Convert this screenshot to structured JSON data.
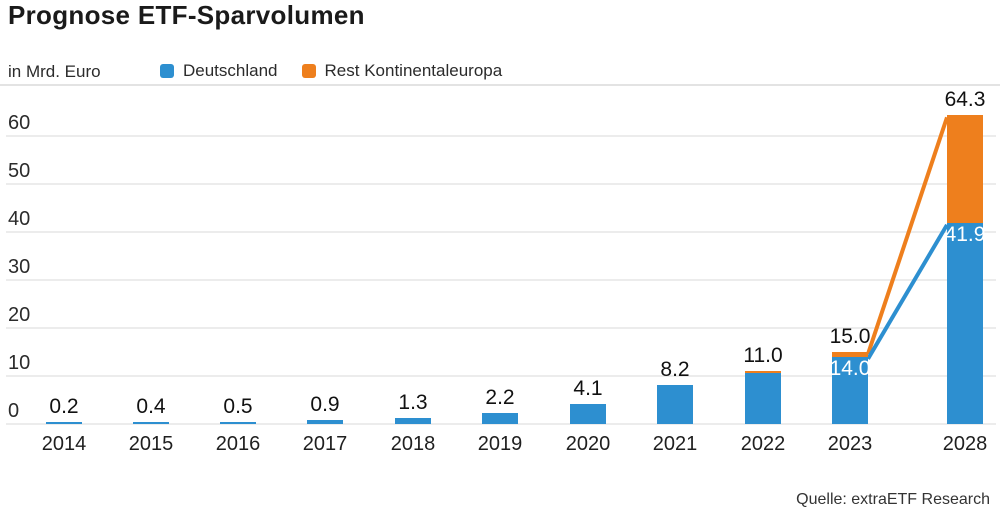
{
  "title": "Prognose ETF-Sparvolumen",
  "unit_label": "in Mrd. Euro",
  "legend": {
    "items": [
      {
        "label": "Deutschland",
        "color": "#2d8fd0"
      },
      {
        "label": "Rest Kontinentaleuropa",
        "color": "#ee7f1d"
      }
    ]
  },
  "source": "Quelle: extraETF Research",
  "chart_data": {
    "type": "bar",
    "stacked": true,
    "unit": "Mrd. Euro",
    "title": "Prognose ETF-Sparvolumen",
    "categories": [
      "2014",
      "2015",
      "2016",
      "2017",
      "2018",
      "2019",
      "2020",
      "2021",
      "2022",
      "2023",
      "2028"
    ],
    "series": [
      {
        "name": "Deutschland",
        "color": "#2d8fd0",
        "values": [
          0.2,
          0.4,
          0.5,
          0.9,
          1.3,
          2.2,
          4.1,
          8.2,
          10.6,
          14.0,
          41.9
        ]
      },
      {
        "name": "Rest Kontinentaleuropa",
        "color": "#ee7f1d",
        "values": [
          0,
          0,
          0,
          0,
          0,
          0,
          0,
          0,
          0.4,
          1.0,
          22.4
        ]
      }
    ],
    "totals": [
      0.2,
      0.4,
      0.5,
      0.9,
      1.3,
      2.2,
      4.1,
      8.2,
      11.0,
      15.0,
      64.3
    ],
    "total_labels": [
      "0.2",
      "0.4",
      "0.5",
      "0.9",
      "1.3",
      "2.2",
      "4.1",
      "8.2",
      "11.0",
      "15.0",
      "64.3"
    ],
    "inside_labels": [
      null,
      null,
      null,
      null,
      null,
      null,
      null,
      null,
      null,
      "14.0",
      "41.9"
    ],
    "y_ticks": [
      0,
      10,
      20,
      30,
      40,
      50,
      60
    ],
    "y_tick_labels": [
      "0",
      "10",
      "20",
      "30",
      "40",
      "50",
      "60"
    ],
    "ylim": [
      0,
      66
    ],
    "grid": true,
    "legend_position": "top",
    "connectors": [
      {
        "series": "Rest Kontinentaleuropa",
        "from_index": 9,
        "to_index": 10,
        "level": "total",
        "color": "#ee7f1d"
      },
      {
        "series": "Deutschland",
        "from_index": 9,
        "to_index": 10,
        "level": "deutschland",
        "color": "#2d8fd0"
      }
    ]
  }
}
